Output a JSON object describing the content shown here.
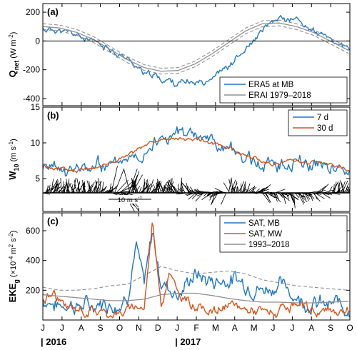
{
  "chart_data": [
    {
      "type": "line",
      "panel_label": "(a)",
      "ylabel_main": "Q",
      "ylabel_sub": "net",
      "ylabel_unit_open": "(W m",
      "ylabel_unit_exp": "-2",
      "ylabel_unit_close": ")",
      "ylim": [
        -450,
        260
      ],
      "yticks": [
        {
          "v": -400,
          "label": "-400"
        },
        {
          "v": -200,
          "label": "-200"
        },
        {
          "v": 0,
          "label": "0"
        },
        {
          "v": 200,
          "label": "200"
        }
      ],
      "zero_line": true,
      "legend_position": "bottom-right",
      "series": [
        {
          "name": "ERA5 at MB",
          "color": "#1f77c4",
          "kind": "noisy",
          "values": [
            [
              0,
              80
            ],
            [
              30,
              70
            ],
            [
              60,
              40
            ],
            [
              90,
              0
            ],
            [
              120,
              -60
            ],
            [
              150,
              -130
            ],
            [
              180,
              -210
            ],
            [
              210,
              -260
            ],
            [
              240,
              -290
            ],
            [
              270,
              -290
            ],
            [
              300,
              -250
            ],
            [
              330,
              -170
            ],
            [
              360,
              -60
            ],
            [
              390,
              60
            ],
            [
              420,
              160
            ],
            [
              450,
              150
            ],
            [
              480,
              80
            ],
            [
              510,
              0
            ],
            [
              545,
              -60
            ]
          ],
          "noise": 38,
          "seed": 11
        },
        {
          "name": "ERAI 1979–2018",
          "color": "#909090",
          "kind": "band",
          "mean": [
            [
              0,
              100
            ],
            [
              30,
              90
            ],
            [
              60,
              60
            ],
            [
              90,
              10
            ],
            [
              120,
              -60
            ],
            [
              150,
              -130
            ],
            [
              180,
              -185
            ],
            [
              210,
              -210
            ],
            [
              240,
              -205
            ],
            [
              270,
              -160
            ],
            [
              300,
              -90
            ],
            [
              330,
              -10
            ],
            [
              360,
              70
            ],
            [
              390,
              120
            ],
            [
              420,
              125
            ],
            [
              450,
              100
            ],
            [
              480,
              60
            ],
            [
              510,
              0
            ],
            [
              545,
              -70
            ]
          ],
          "spread": 20
        }
      ]
    },
    {
      "type": "line",
      "panel_label": "(b)",
      "ylabel_main": "W",
      "ylabel_sub": "10",
      "ylabel_unit_open": "(m s",
      "ylabel_unit_exp": "-1",
      "ylabel_unit_close": ")",
      "ylim": [
        0.4,
        15
      ],
      "yticks": [
        {
          "v": 5,
          "label": "5"
        },
        {
          "v": 10,
          "label": "10"
        },
        {
          "v": 15,
          "label": "15"
        }
      ],
      "legend_position": "top-right",
      "wind_vectors": {
        "baseline": 3.0,
        "scale_label": "10 m s",
        "scale_exp": "-1"
      },
      "series": [
        {
          "name": "7 d",
          "color": "#1f77c4",
          "kind": "noisy",
          "values": [
            [
              0,
              6.5
            ],
            [
              30,
              6.0
            ],
            [
              60,
              6.0
            ],
            [
              90,
              6.5
            ],
            [
              120,
              7.0
            ],
            [
              150,
              8.0
            ],
            [
              180,
              9.5
            ],
            [
              210,
              10.5
            ],
            [
              240,
              11.0
            ],
            [
              270,
              11.0
            ],
            [
              300,
              10.5
            ],
            [
              330,
              9.5
            ],
            [
              360,
              8.0
            ],
            [
              390,
              7.0
            ],
            [
              420,
              7.0
            ],
            [
              450,
              7.5
            ],
            [
              480,
              7.5
            ],
            [
              510,
              7.0
            ],
            [
              545,
              6.0
            ]
          ],
          "noise": 1.6,
          "seed": 23
        },
        {
          "name": "30 d",
          "color": "#d95319",
          "kind": "noisy",
          "values": [
            [
              0,
              6.8
            ],
            [
              30,
              6.1
            ],
            [
              60,
              6.1
            ],
            [
              90,
              6.6
            ],
            [
              120,
              7.2
            ],
            [
              150,
              8.2
            ],
            [
              180,
              9.5
            ],
            [
              210,
              10.3
            ],
            [
              240,
              10.5
            ],
            [
              270,
              10.5
            ],
            [
              300,
              10.0
            ],
            [
              330,
              9.3
            ],
            [
              360,
              8.2
            ],
            [
              390,
              7.3
            ],
            [
              420,
              7.2
            ],
            [
              450,
              7.5
            ],
            [
              480,
              7.4
            ],
            [
              510,
              7.0
            ],
            [
              545,
              6.1
            ]
          ],
          "noise": 0.45,
          "seed": 5
        }
      ]
    },
    {
      "type": "line",
      "panel_label": "(c)",
      "ylabel_main": "EKE",
      "ylabel_sub": "g",
      "ylabel_unit_open": "(×10",
      "ylabel_unit_exp": "-4",
      "ylabel_unit_mid": " m",
      "ylabel_unit_exp2": "2",
      "ylabel_unit_mid2": " s",
      "ylabel_unit_exp3": "-2",
      "ylabel_unit_close": ")",
      "ylim": [
        0,
        720
      ],
      "yticks": [
        {
          "v": 200,
          "label": "200"
        },
        {
          "v": 400,
          "label": "400"
        },
        {
          "v": 600,
          "label": "600"
        }
      ],
      "legend_position": "top-right",
      "series": [
        {
          "name": "SAT, MB",
          "color": "#1f77c4",
          "kind": "noisy",
          "values": [
            [
              0,
              130
            ],
            [
              30,
              110
            ],
            [
              60,
              100
            ],
            [
              90,
              90
            ],
            [
              120,
              110
            ],
            [
              150,
              170
            ],
            [
              165,
              500
            ],
            [
              180,
              200
            ],
            [
              195,
              580
            ],
            [
              210,
              250
            ],
            [
              240,
              200
            ],
            [
              270,
              300
            ],
            [
              300,
              250
            ],
            [
              330,
              300
            ],
            [
              360,
              250
            ],
            [
              390,
              200
            ],
            [
              420,
              250
            ],
            [
              450,
              150
            ],
            [
              480,
              120
            ],
            [
              510,
              100
            ],
            [
              545,
              110
            ]
          ],
          "noise": 90,
          "seed": 7,
          "floor": 20
        },
        {
          "name": "SAT, MW",
          "color": "#d95319",
          "kind": "noisy",
          "values": [
            [
              0,
              140
            ],
            [
              20,
              180
            ],
            [
              40,
              80
            ],
            [
              60,
              60
            ],
            [
              90,
              50
            ],
            [
              120,
              50
            ],
            [
              150,
              60
            ],
            [
              180,
              90
            ],
            [
              195,
              680
            ],
            [
              210,
              100
            ],
            [
              225,
              350
            ],
            [
              240,
              150
            ],
            [
              270,
              100
            ],
            [
              300,
              60
            ],
            [
              330,
              90
            ],
            [
              360,
              80
            ],
            [
              390,
              60
            ],
            [
              420,
              50
            ],
            [
              450,
              80
            ],
            [
              480,
              60
            ],
            [
              510,
              50
            ],
            [
              545,
              50
            ]
          ],
          "noise": 55,
          "seed": 31,
          "floor": 15
        },
        {
          "name": "1993–2018",
          "color": "#909090",
          "kind": "band",
          "mean": [
            [
              0,
              170
            ],
            [
              30,
              160
            ],
            [
              60,
              150
            ],
            [
              90,
              140
            ],
            [
              120,
              130
            ],
            [
              150,
              130
            ],
            [
              180,
              140
            ],
            [
              210,
              170
            ],
            [
              240,
              180
            ],
            [
              270,
              180
            ],
            [
              300,
              165
            ],
            [
              330,
              145
            ],
            [
              360,
              130
            ],
            [
              390,
              120
            ],
            [
              420,
              120
            ],
            [
              450,
              115
            ],
            [
              480,
              115
            ],
            [
              510,
              120
            ],
            [
              545,
              125
            ]
          ],
          "spread_hi": [
            [
              0,
              220
            ],
            [
              30,
              200
            ],
            [
              60,
              200
            ],
            [
              90,
              210
            ],
            [
              120,
              230
            ],
            [
              150,
              240
            ],
            [
              180,
              300
            ],
            [
              210,
              360
            ],
            [
              240,
              330
            ],
            [
              270,
              310
            ],
            [
              300,
              320
            ],
            [
              330,
              330
            ],
            [
              360,
              310
            ],
            [
              390,
              270
            ],
            [
              420,
              250
            ],
            [
              450,
              230
            ],
            [
              480,
              220
            ],
            [
              510,
              210
            ],
            [
              545,
              200
            ]
          ],
          "spread_lo": [
            [
              0,
              60
            ],
            [
              545,
              60
            ]
          ]
        }
      ]
    }
  ],
  "x_axis": {
    "month_labels": [
      "J",
      "J",
      "A",
      "S",
      "O",
      "N",
      "D",
      "J",
      "F",
      "M",
      "A",
      "M",
      "J",
      "J",
      "A",
      "S",
      "O"
    ],
    "year_labels": [
      {
        "text": "| 2016",
        "month_index": 0
      },
      {
        "text": "| 2017",
        "month_index": 7
      }
    ]
  }
}
